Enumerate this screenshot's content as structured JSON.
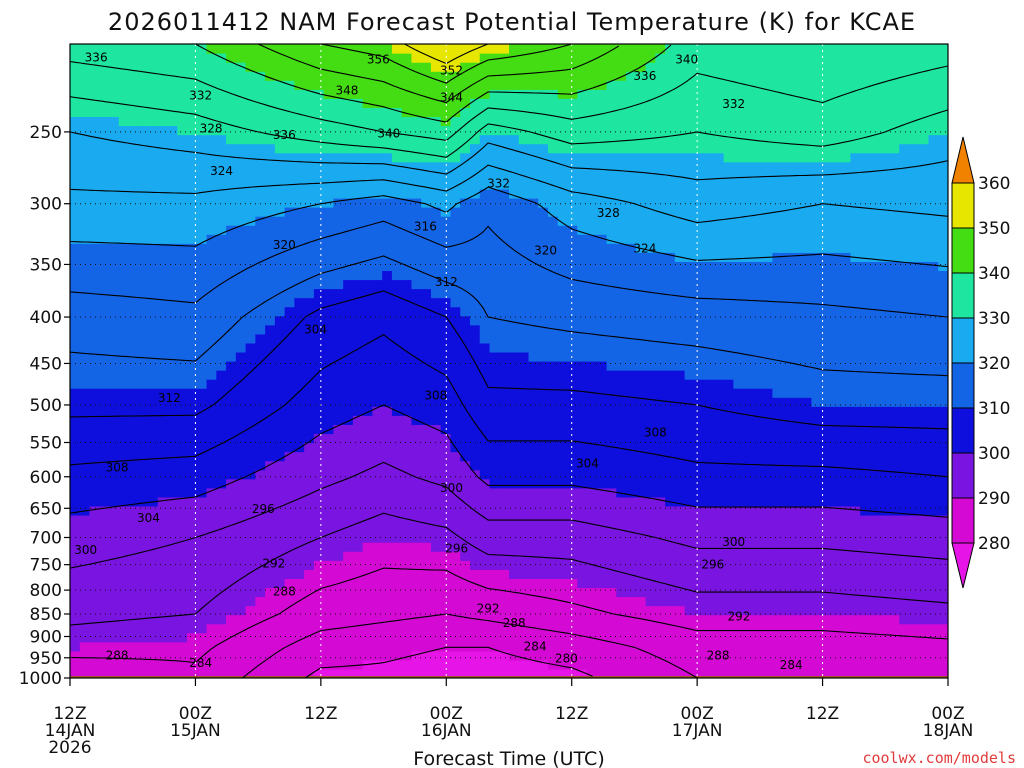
{
  "chart_data": {
    "type": "heatmap",
    "title": "2026011412 NAM Forecast Potential Temperature (K) for KCAE",
    "xlabel": "Forecast Time (UTC)",
    "ylabel": "",
    "x_ticks": [
      {
        "hours": 0,
        "line1": "12Z",
        "line2": "14JAN",
        "line3": "2026"
      },
      {
        "hours": 12,
        "line1": "00Z",
        "line2": "15JAN",
        "line3": ""
      },
      {
        "hours": 24,
        "line1": "12Z",
        "line2": "",
        "line3": ""
      },
      {
        "hours": 36,
        "line1": "00Z",
        "line2": "16JAN",
        "line3": ""
      },
      {
        "hours": 48,
        "line1": "12Z",
        "line2": "",
        "line3": ""
      },
      {
        "hours": 60,
        "line1": "00Z",
        "line2": "17JAN",
        "line3": ""
      },
      {
        "hours": 72,
        "line1": "12Z",
        "line2": "",
        "line3": ""
      },
      {
        "hours": 84,
        "line1": "00Z",
        "line2": "18JAN",
        "line3": ""
      }
    ],
    "xlim": [
      0,
      84
    ],
    "y_ticks": [
      250,
      300,
      350,
      400,
      450,
      500,
      550,
      600,
      650,
      700,
      750,
      800,
      850,
      900,
      950,
      1000
    ],
    "ylim": [
      1000,
      200
    ],
    "y_scale": "log-pressure",
    "grid": true,
    "colorbar": {
      "labels": [
        360,
        350,
        340,
        330,
        320,
        310,
        300,
        290,
        280
      ],
      "bounds": [
        280,
        290,
        300,
        310,
        320,
        330,
        340,
        350,
        360
      ],
      "colors": [
        "#d40ad4",
        "#7a14e0",
        "#0f0fdd",
        "#1464e6",
        "#1aaaf0",
        "#1ee6a0",
        "#44dd14",
        "#e6e600",
        "#f5a000"
      ],
      "over_color": "#f08200",
      "under_color": "#e614e6",
      "placement": "right"
    },
    "ground_color": "#a0522d",
    "theta_profiles": [
      {
        "hours": 0,
        "p": [
          1000,
          925,
          850,
          700,
          600,
          500,
          400,
          300,
          250,
          200
        ],
        "theta": [
          284,
          290,
          293,
          298,
          303,
          309,
          314,
          323,
          328,
          338
        ]
      },
      {
        "hours": 12,
        "p": [
          1000,
          925,
          850,
          700,
          600,
          500,
          400,
          300,
          250,
          200
        ],
        "theta": [
          287,
          289,
          292,
          296,
          302,
          309,
          315,
          323,
          330,
          340
        ]
      },
      {
        "hours": 24,
        "p": [
          1000,
          925,
          850,
          700,
          600,
          500,
          400,
          300,
          250,
          200
        ],
        "theta": [
          279,
          282,
          286,
          292,
          297,
          302,
          307,
          320,
          334,
          348
        ]
      },
      {
        "hours": 30,
        "p": [
          1000,
          925,
          850,
          700,
          600,
          500,
          400,
          300,
          250,
          200
        ],
        "theta": [
          279,
          281,
          285,
          290,
          295,
          300,
          305,
          318,
          336,
          350
        ]
      },
      {
        "hours": 36,
        "p": [
          1000,
          925,
          850,
          700,
          600,
          500,
          400,
          300,
          250,
          200
        ],
        "theta": [
          278,
          280,
          284,
          291,
          297,
          302,
          308,
          321,
          338,
          356
        ]
      },
      {
        "hours": 40,
        "p": [
          1000,
          925,
          850,
          700,
          600,
          500,
          400,
          300,
          250,
          200
        ],
        "theta": [
          278,
          280,
          285,
          294,
          301,
          307,
          312,
          317,
          330,
          352
        ]
      },
      {
        "hours": 48,
        "p": [
          1000,
          925,
          850,
          700,
          600,
          500,
          400,
          300,
          250,
          200
        ],
        "theta": [
          279,
          282,
          287,
          294,
          301,
          307,
          313,
          322,
          334,
          348
        ]
      },
      {
        "hours": 60,
        "p": [
          1000,
          925,
          850,
          700,
          600,
          500,
          400,
          300,
          250,
          200
        ],
        "theta": [
          284,
          286,
          290,
          297,
          303,
          308,
          314,
          326,
          332,
          338
        ]
      },
      {
        "hours": 72,
        "p": [
          1000,
          925,
          850,
          700,
          600,
          500,
          400,
          300,
          250,
          200
        ],
        "theta": [
          284,
          286,
          290,
          297,
          303,
          310,
          315,
          324,
          334,
          340
        ]
      },
      {
        "hours": 84,
        "p": [
          1000,
          925,
          850,
          700,
          600,
          500,
          400,
          300,
          250,
          200
        ],
        "theta": [
          285,
          287,
          291,
          298,
          304,
          310,
          316,
          325,
          330,
          338
        ]
      }
    ],
    "contour_labels": [
      {
        "value": "336",
        "hours": 2.5,
        "p": 207
      },
      {
        "value": "332",
        "hours": 12.5,
        "p": 228
      },
      {
        "value": "328",
        "hours": 13.5,
        "p": 248
      },
      {
        "value": "324",
        "hours": 14.5,
        "p": 276
      },
      {
        "value": "336",
        "hours": 20.5,
        "p": 252
      },
      {
        "value": "348",
        "hours": 26.5,
        "p": 225
      },
      {
        "value": "356",
        "hours": 29.5,
        "p": 208
      },
      {
        "value": "340",
        "hours": 30.5,
        "p": 251
      },
      {
        "value": "352",
        "hours": 36.5,
        "p": 214
      },
      {
        "value": "344",
        "hours": 36.5,
        "p": 229
      },
      {
        "value": "320",
        "hours": 20.5,
        "p": 333
      },
      {
        "value": "316",
        "hours": 34,
        "p": 318
      },
      {
        "value": "312",
        "hours": 36,
        "p": 366
      },
      {
        "value": "332",
        "hours": 41,
        "p": 285
      },
      {
        "value": "320",
        "hours": 45.5,
        "p": 338
      },
      {
        "value": "328",
        "hours": 51.5,
        "p": 307
      },
      {
        "value": "324",
        "hours": 55,
        "p": 336
      },
      {
        "value": "336",
        "hours": 55,
        "p": 217
      },
      {
        "value": "340",
        "hours": 59,
        "p": 208
      },
      {
        "value": "332",
        "hours": 63.5,
        "p": 233
      },
      {
        "value": "304",
        "hours": 23.5,
        "p": 413
      },
      {
        "value": "312",
        "hours": 9.5,
        "p": 491
      },
      {
        "value": "308",
        "hours": 35,
        "p": 488
      },
      {
        "value": "308",
        "hours": 56,
        "p": 536
      },
      {
        "value": "304",
        "hours": 49.5,
        "p": 580
      },
      {
        "value": "308",
        "hours": 4.5,
        "p": 586
      },
      {
        "value": "304",
        "hours": 7.5,
        "p": 666
      },
      {
        "value": "296",
        "hours": 18.5,
        "p": 651
      },
      {
        "value": "300",
        "hours": 36.5,
        "p": 617
      },
      {
        "value": "300",
        "hours": 1.5,
        "p": 723
      },
      {
        "value": "292",
        "hours": 19.5,
        "p": 748
      },
      {
        "value": "296",
        "hours": 37,
        "p": 720
      },
      {
        "value": "300",
        "hours": 63.5,
        "p": 708
      },
      {
        "value": "288",
        "hours": 20.5,
        "p": 803
      },
      {
        "value": "296",
        "hours": 61.5,
        "p": 750
      },
      {
        "value": "292",
        "hours": 40,
        "p": 838
      },
      {
        "value": "288",
        "hours": 42.5,
        "p": 870
      },
      {
        "value": "292",
        "hours": 64,
        "p": 855
      },
      {
        "value": "284",
        "hours": 44.5,
        "p": 923
      },
      {
        "value": "280",
        "hours": 47.5,
        "p": 952
      },
      {
        "value": "288",
        "hours": 4.5,
        "p": 944
      },
      {
        "value": "284",
        "hours": 12.5,
        "p": 963
      },
      {
        "value": "288",
        "hours": 62,
        "p": 945
      },
      {
        "value": "284",
        "hours": 69,
        "p": 968
      }
    ]
  },
  "credit": "coolwx.com/models"
}
